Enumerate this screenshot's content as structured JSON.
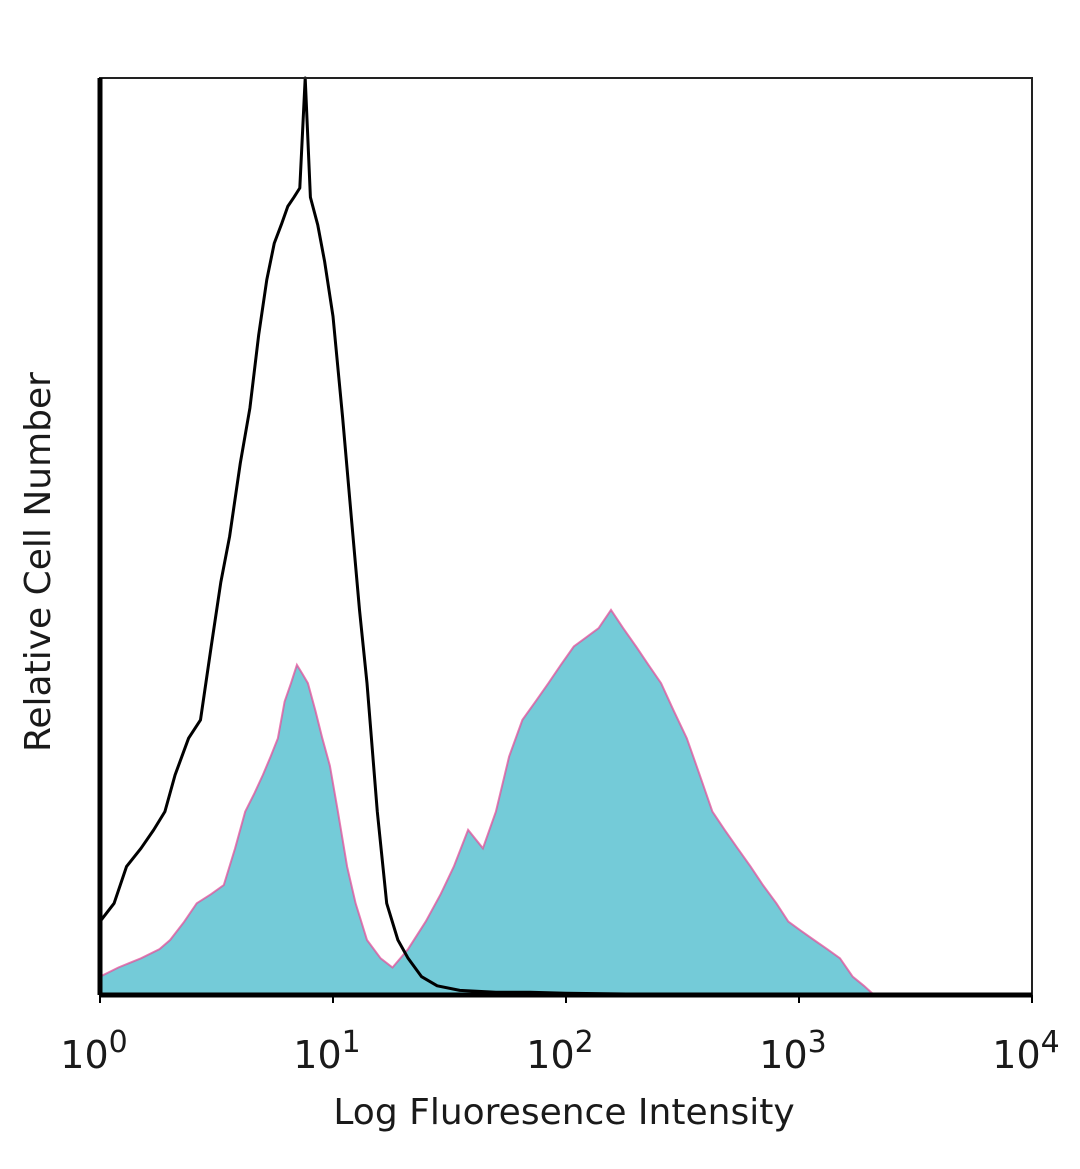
{
  "chart_data": {
    "type": "area",
    "title": "",
    "xlabel": "Log Fluoresence Intensity",
    "ylabel": "Relative Cell Number",
    "x_scale": "log",
    "xlim": [
      1,
      10000
    ],
    "ylim": [
      0,
      100
    ],
    "grid": false,
    "x_ticks": [
      {
        "value": 1,
        "base": "10",
        "exp": "0"
      },
      {
        "value": 10,
        "base": "10",
        "exp": "1"
      },
      {
        "value": 100,
        "base": "10",
        "exp": "2"
      },
      {
        "value": 1000,
        "base": "10",
        "exp": "3"
      },
      {
        "value": 10000,
        "base": "10",
        "exp": "4"
      }
    ],
    "series": [
      {
        "style": "line",
        "color": "#000000",
        "x": [
          1,
          1.15,
          1.3,
          1.5,
          1.7,
          1.9,
          2.1,
          2.4,
          2.7,
          3.0,
          3.3,
          3.6,
          4.0,
          4.4,
          4.8,
          5.2,
          5.6,
          6.0,
          6.4,
          6.8,
          7.2,
          7.6,
          8.0,
          8.6,
          9.2,
          10,
          11,
          12,
          13,
          14,
          15.5,
          17,
          19,
          21,
          24,
          28,
          35,
          50,
          70,
          100,
          200,
          400,
          1000,
          10000
        ],
        "y": [
          8,
          10,
          14,
          16,
          18,
          20,
          24,
          28,
          30,
          38,
          45,
          50,
          58,
          64,
          72,
          78,
          82,
          84,
          86,
          87,
          88,
          100,
          87,
          84,
          80,
          74,
          63,
          52,
          42,
          34,
          20,
          10,
          6,
          4,
          2,
          1,
          0.5,
          0.3,
          0.3,
          0.2,
          0.1,
          0.1,
          0,
          0
        ]
      },
      {
        "style": "filled",
        "color": "#74cbd8",
        "outline": "#e0509a",
        "x": [
          1,
          1.2,
          1.5,
          1.8,
          2.0,
          2.3,
          2.6,
          3.0,
          3.4,
          3.8,
          4.2,
          4.6,
          5.0,
          5.4,
          5.8,
          6.2,
          6.6,
          7.0,
          7.4,
          7.8,
          8.4,
          9.0,
          9.7,
          10.5,
          11.5,
          12.5,
          14,
          16,
          18,
          21,
          25,
          29,
          33,
          38,
          44,
          50,
          57,
          65,
          74,
          84,
          95,
          108,
          122,
          138,
          156,
          176,
          200,
          226,
          256,
          290,
          330,
          375,
          425,
          480,
          545,
          620,
          700,
          800,
          900,
          1020,
          1160,
          1320,
          1500,
          1700,
          1900,
          2100,
          10000
        ],
        "y": [
          2,
          3,
          4,
          5,
          6,
          8,
          10,
          11,
          12,
          16,
          20,
          22,
          24,
          26,
          28,
          32,
          34,
          36,
          35,
          34,
          31,
          28,
          25,
          20,
          14,
          10,
          6,
          4,
          3,
          5,
          8,
          11,
          14,
          18,
          16,
          20,
          26,
          30,
          32,
          34,
          36,
          38,
          39,
          40,
          42,
          40,
          38,
          36,
          34,
          31,
          28,
          24,
          20,
          18,
          16,
          14,
          12,
          10,
          8,
          7,
          6,
          5,
          4,
          2,
          1,
          0,
          0
        ]
      }
    ]
  }
}
